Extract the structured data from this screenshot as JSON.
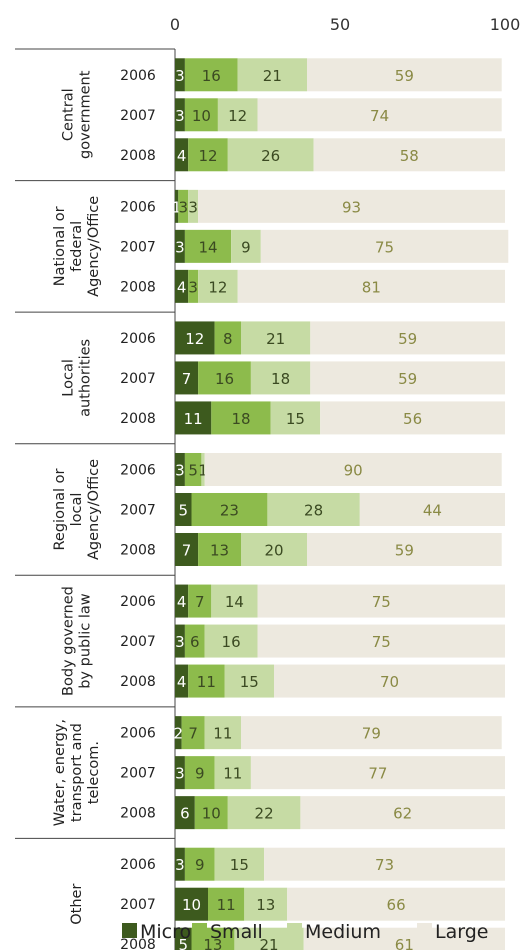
{
  "chart_data": {
    "type": "bar",
    "orientation": "horizontal",
    "stacked": true,
    "xlim": [
      0,
      100
    ],
    "xticks": [
      "0",
      "50",
      "100"
    ],
    "grid": false,
    "legend_position": "bottom",
    "colors": [
      "#3d5a1e",
      "#8dbb4c",
      "#c6dba4",
      "#ede9df"
    ],
    "label_colors": [
      "#ffffff",
      "#3b4a22",
      "#3b4a22",
      "#8a8a45"
    ],
    "series": [
      {
        "name": "Micro"
      },
      {
        "name": "Small"
      },
      {
        "name": "Medium"
      },
      {
        "name": "Large"
      }
    ],
    "groups": [
      {
        "label": [
          "Central",
          "government"
        ],
        "years": [
          {
            "year": "2006",
            "values": [
              3,
              16,
              21,
              59
            ]
          },
          {
            "year": "2007",
            "values": [
              3,
              10,
              12,
              74
            ]
          },
          {
            "year": "2008",
            "values": [
              4,
              12,
              26,
              58
            ]
          }
        ]
      },
      {
        "label": [
          "National or",
          "federal",
          "Agency/Office"
        ],
        "years": [
          {
            "year": "2006",
            "values": [
              1,
              3,
              3,
              93
            ]
          },
          {
            "year": "2007",
            "values": [
              3,
              14,
              9,
              75
            ]
          },
          {
            "year": "2008",
            "values": [
              4,
              3,
              12,
              81
            ]
          }
        ]
      },
      {
        "label": [
          "Local",
          "authorities"
        ],
        "years": [
          {
            "year": "2006",
            "values": [
              12,
              8,
              21,
              59
            ]
          },
          {
            "year": "2007",
            "values": [
              7,
              16,
              18,
              59
            ]
          },
          {
            "year": "2008",
            "values": [
              11,
              18,
              15,
              56
            ]
          }
        ]
      },
      {
        "label": [
          "Regional or",
          "local",
          "Agency/Office"
        ],
        "years": [
          {
            "year": "2006",
            "values": [
              3,
              5,
              1,
              90
            ]
          },
          {
            "year": "2007",
            "values": [
              5,
              23,
              28,
              44
            ]
          },
          {
            "year": "2008",
            "values": [
              7,
              13,
              20,
              59
            ]
          }
        ]
      },
      {
        "label": [
          "Body governed",
          "by public law"
        ],
        "years": [
          {
            "year": "2006",
            "values": [
              4,
              7,
              14,
              75
            ]
          },
          {
            "year": "2007",
            "values": [
              3,
              6,
              16,
              75
            ]
          },
          {
            "year": "2008",
            "values": [
              4,
              11,
              15,
              70
            ]
          }
        ]
      },
      {
        "label": [
          "Water, energy,",
          "transport and",
          "telecom."
        ],
        "years": [
          {
            "year": "2006",
            "values": [
              2,
              7,
              11,
              79
            ]
          },
          {
            "year": "2007",
            "values": [
              3,
              9,
              11,
              77
            ]
          },
          {
            "year": "2008",
            "values": [
              6,
              10,
              22,
              62
            ]
          }
        ]
      },
      {
        "label": [
          "Other"
        ],
        "years": [
          {
            "year": "2006",
            "values": [
              3,
              9,
              15,
              73
            ]
          },
          {
            "year": "2007",
            "values": [
              10,
              11,
              13,
              66
            ]
          },
          {
            "year": "2008",
            "values": [
              5,
              13,
              21,
              61
            ]
          }
        ]
      }
    ]
  }
}
